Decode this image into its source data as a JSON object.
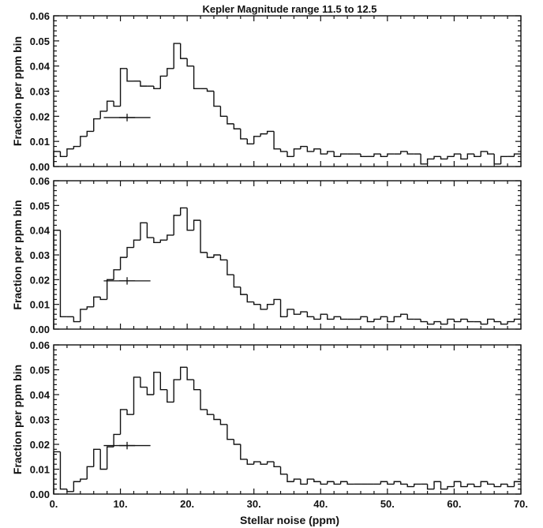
{
  "figure": {
    "title": "Kepler Magnitude range 11.5 to 12.5",
    "xlabel": "Stellar noise (ppm)",
    "ylabel": "Fraction per ppm bin"
  },
  "chart_data": [
    {
      "type": "histogram",
      "title": "Kepler Magnitude range 11.5 to 12.5",
      "ylabel": "Fraction per ppm bin",
      "xlabel": "",
      "xlim": [
        0,
        70
      ],
      "ylim": [
        0,
        0.06
      ],
      "bin_width": 1,
      "x_ticks": [
        0,
        10,
        20,
        30,
        40,
        50,
        60,
        70
      ],
      "y_ticks": [
        0.0,
        0.01,
        0.02,
        0.03,
        0.04,
        0.05,
        0.06
      ],
      "y_tick_labels": [
        "0.00",
        "0.01",
        "0.02",
        "0.03",
        "0.04",
        "0.05",
        "0.06"
      ],
      "values": [
        0.006,
        0.004,
        0.007,
        0.008,
        0.012,
        0.014,
        0.019,
        0.022,
        0.026,
        0.024,
        0.039,
        0.034,
        0.034,
        0.032,
        0.032,
        0.031,
        0.036,
        0.039,
        0.049,
        0.043,
        0.04,
        0.031,
        0.031,
        0.03,
        0.024,
        0.02,
        0.017,
        0.015,
        0.011,
        0.009,
        0.012,
        0.013,
        0.014,
        0.007,
        0.006,
        0.004,
        0.007,
        0.008,
        0.006,
        0.007,
        0.005,
        0.006,
        0.004,
        0.005,
        0.005,
        0.005,
        0.004,
        0.004,
        0.005,
        0.004,
        0.005,
        0.005,
        0.006,
        0.005,
        0.005,
        0.001,
        0.003,
        0.004,
        0.003,
        0.004,
        0.005,
        0.003,
        0.005,
        0.004,
        0.006,
        0.005,
        0.001,
        0.004,
        0.004,
        0.005
      ],
      "error_bar": {
        "x": 11,
        "y": 0.0195,
        "x_err": 3.5,
        "y_err": 0.0015
      }
    },
    {
      "type": "histogram",
      "title": "",
      "ylabel": "Fraction per ppm bin",
      "xlabel": "",
      "xlim": [
        0,
        70
      ],
      "ylim": [
        0,
        0.06
      ],
      "bin_width": 1,
      "x_ticks": [
        0,
        10,
        20,
        30,
        40,
        50,
        60,
        70
      ],
      "y_ticks": [
        0.0,
        0.01,
        0.02,
        0.03,
        0.04,
        0.05,
        0.06
      ],
      "y_tick_labels": [
        "0.00",
        "0.01",
        "0.02",
        "0.03",
        "0.04",
        "0.05",
        "0.06"
      ],
      "values": [
        0.04,
        0.005,
        0.005,
        0.003,
        0.008,
        0.009,
        0.013,
        0.012,
        0.02,
        0.024,
        0.029,
        0.033,
        0.036,
        0.043,
        0.037,
        0.035,
        0.036,
        0.038,
        0.046,
        0.049,
        0.04,
        0.044,
        0.031,
        0.029,
        0.03,
        0.028,
        0.022,
        0.017,
        0.014,
        0.011,
        0.01,
        0.008,
        0.01,
        0.012,
        0.005,
        0.008,
        0.006,
        0.007,
        0.005,
        0.004,
        0.006,
        0.004,
        0.005,
        0.004,
        0.004,
        0.004,
        0.005,
        0.003,
        0.004,
        0.005,
        0.003,
        0.005,
        0.006,
        0.004,
        0.004,
        0.003,
        0.002,
        0.003,
        0.002,
        0.004,
        0.003,
        0.004,
        0.003,
        0.003,
        0.002,
        0.004,
        0.003,
        0.002,
        0.003,
        0.004
      ],
      "error_bar": {
        "x": 11,
        "y": 0.0195,
        "x_err": 3.5,
        "y_err": 0.0015
      }
    },
    {
      "type": "histogram",
      "title": "",
      "ylabel": "Fraction per ppm bin",
      "xlabel": "Stellar noise (ppm)",
      "xlim": [
        0,
        70
      ],
      "ylim": [
        0,
        0.06
      ],
      "bin_width": 1,
      "x_ticks": [
        0,
        10,
        20,
        30,
        40,
        50,
        60,
        70
      ],
      "x_tick_labels": [
        "0.",
        "10.",
        "20.",
        "30.",
        "40.",
        "50.",
        "60.",
        "70."
      ],
      "y_ticks": [
        0.0,
        0.01,
        0.02,
        0.03,
        0.04,
        0.05,
        0.06
      ],
      "y_tick_labels": [
        "0.00",
        "0.01",
        "0.02",
        "0.03",
        "0.04",
        "0.05",
        "0.06"
      ],
      "values": [
        0.017,
        0.002,
        0.001,
        0.005,
        0.006,
        0.011,
        0.018,
        0.01,
        0.019,
        0.024,
        0.034,
        0.032,
        0.047,
        0.043,
        0.04,
        0.049,
        0.042,
        0.037,
        0.046,
        0.051,
        0.046,
        0.042,
        0.034,
        0.032,
        0.03,
        0.028,
        0.022,
        0.02,
        0.014,
        0.012,
        0.013,
        0.012,
        0.013,
        0.011,
        0.008,
        0.005,
        0.006,
        0.004,
        0.006,
        0.005,
        0.004,
        0.005,
        0.004,
        0.005,
        0.004,
        0.004,
        0.004,
        0.004,
        0.004,
        0.005,
        0.004,
        0.005,
        0.004,
        0.003,
        0.004,
        0.004,
        0.002,
        0.005,
        0.002,
        0.003,
        0.005,
        0.003,
        0.004,
        0.003,
        0.005,
        0.004,
        0.003,
        0.004,
        0.003,
        0.005
      ],
      "error_bar": {
        "x": 11,
        "y": 0.0195,
        "x_err": 3.5,
        "y_err": 0.0015
      }
    }
  ]
}
